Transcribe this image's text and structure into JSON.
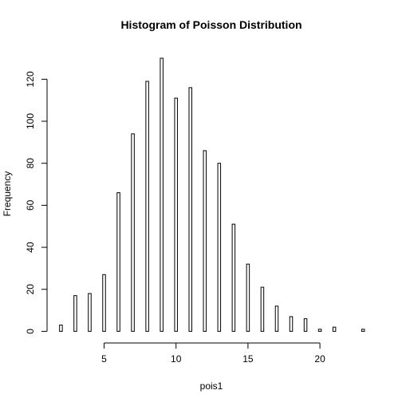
{
  "chart_data": {
    "type": "bar",
    "title": "Histogram of Poisson Distribution",
    "xlabel": "pois1",
    "ylabel": "Frequency",
    "x": [
      2,
      3,
      4,
      5,
      6,
      7,
      8,
      9,
      10,
      11,
      12,
      13,
      14,
      15,
      16,
      17,
      18,
      19,
      20,
      21,
      23
    ],
    "values": [
      3,
      17,
      18,
      27,
      66,
      94,
      119,
      130,
      111,
      116,
      86,
      80,
      51,
      32,
      21,
      12,
      7,
      6,
      1,
      2,
      1
    ],
    "xlim": [
      2,
      23
    ],
    "ylim": [
      0,
      130
    ],
    "xticks": [
      5,
      10,
      15,
      20
    ],
    "yticks": [
      0,
      20,
      40,
      60,
      80,
      100,
      120
    ],
    "grid": false,
    "legend": "none"
  }
}
